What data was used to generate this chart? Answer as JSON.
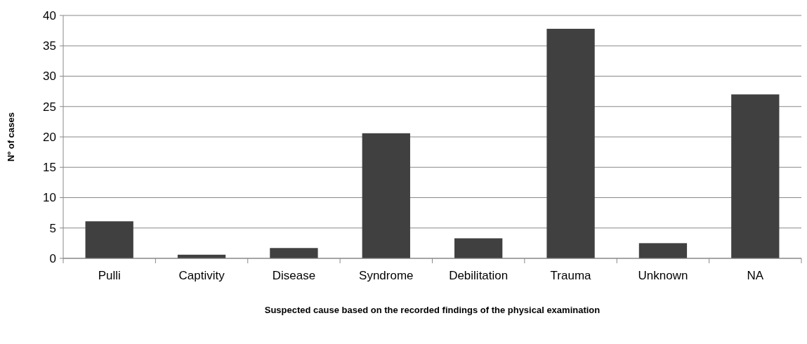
{
  "chart_data": {
    "type": "bar",
    "xlabel": "Suspected cause based on the recorded findings of the physical examination",
    "ylabel": "Nº of cases",
    "categories": [
      "Pulli",
      "Captivity",
      "Disease",
      "Syndrome",
      "Debilitation",
      "Trauma",
      "Unknown",
      "NA"
    ],
    "values": [
      6.1,
      0.6,
      1.7,
      20.6,
      3.3,
      37.8,
      2.5,
      27.0
    ],
    "color": "#404040",
    "ylim": [
      0,
      40
    ],
    "yticks": [
      0,
      5,
      10,
      15,
      20,
      25,
      30,
      35,
      40
    ],
    "grid": "y"
  }
}
